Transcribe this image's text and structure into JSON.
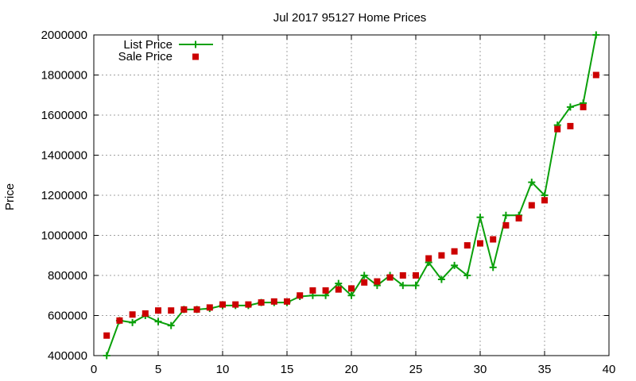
{
  "chart_data": {
    "type": "line",
    "title": "Jul 2017 95127 Home Prices",
    "xlabel": "",
    "ylabel": "Price",
    "xlim": [
      0,
      40
    ],
    "ylim": [
      400000,
      2000000
    ],
    "xticks": [
      0,
      5,
      10,
      15,
      20,
      25,
      30,
      35,
      40
    ],
    "yticks": [
      400000,
      600000,
      800000,
      1000000,
      1200000,
      1400000,
      1600000,
      1800000,
      2000000
    ],
    "xtick_labels": [
      "0",
      "5",
      "10",
      "15",
      "20",
      "25",
      "30",
      "35",
      "40"
    ],
    "ytick_labels": [
      "400000",
      "600000",
      "800000",
      "1000000",
      "1200000",
      "1400000",
      "1600000",
      "1800000",
      "2000000"
    ],
    "grid": true,
    "legend_position": "top-left",
    "series": [
      {
        "name": "List Price",
        "style": "line-with-plus-markers",
        "color": "#0aa00a",
        "x": [
          1,
          2,
          3,
          4,
          5,
          6,
          7,
          8,
          9,
          10,
          11,
          12,
          13,
          14,
          15,
          16,
          17,
          18,
          19,
          20,
          21,
          22,
          23,
          24,
          25,
          26,
          27,
          28,
          29,
          30,
          31,
          32,
          33,
          34,
          35,
          36,
          37,
          38,
          39
        ],
        "y": [
          400000,
          575000,
          565000,
          600000,
          570000,
          550000,
          630000,
          630000,
          635000,
          650000,
          650000,
          650000,
          665000,
          665000,
          665000,
          695000,
          700000,
          700000,
          760000,
          700000,
          800000,
          750000,
          800000,
          750000,
          750000,
          865000,
          780000,
          850000,
          800000,
          1090000,
          840000,
          1100000,
          1100000,
          1265000,
          1200000,
          1550000,
          1640000,
          1660000,
          2000000
        ]
      },
      {
        "name": "Sale Price",
        "style": "square-markers",
        "color": "#cc0000",
        "x": [
          1,
          2,
          3,
          4,
          5,
          6,
          7,
          8,
          9,
          10,
          11,
          12,
          13,
          14,
          15,
          16,
          17,
          18,
          19,
          20,
          21,
          22,
          23,
          24,
          25,
          26,
          27,
          28,
          29,
          30,
          31,
          32,
          33,
          34,
          35,
          36,
          37,
          38,
          39
        ],
        "y": [
          500000,
          575000,
          605000,
          610000,
          625000,
          625000,
          630000,
          630000,
          640000,
          655000,
          655000,
          655000,
          665000,
          670000,
          670000,
          700000,
          725000,
          725000,
          730000,
          735000,
          765000,
          770000,
          790000,
          800000,
          800000,
          885000,
          900000,
          920000,
          950000,
          960000,
          980000,
          1050000,
          1085000,
          1150000,
          1175000,
          1530000,
          1545000,
          1640000,
          1800000
        ]
      }
    ]
  }
}
